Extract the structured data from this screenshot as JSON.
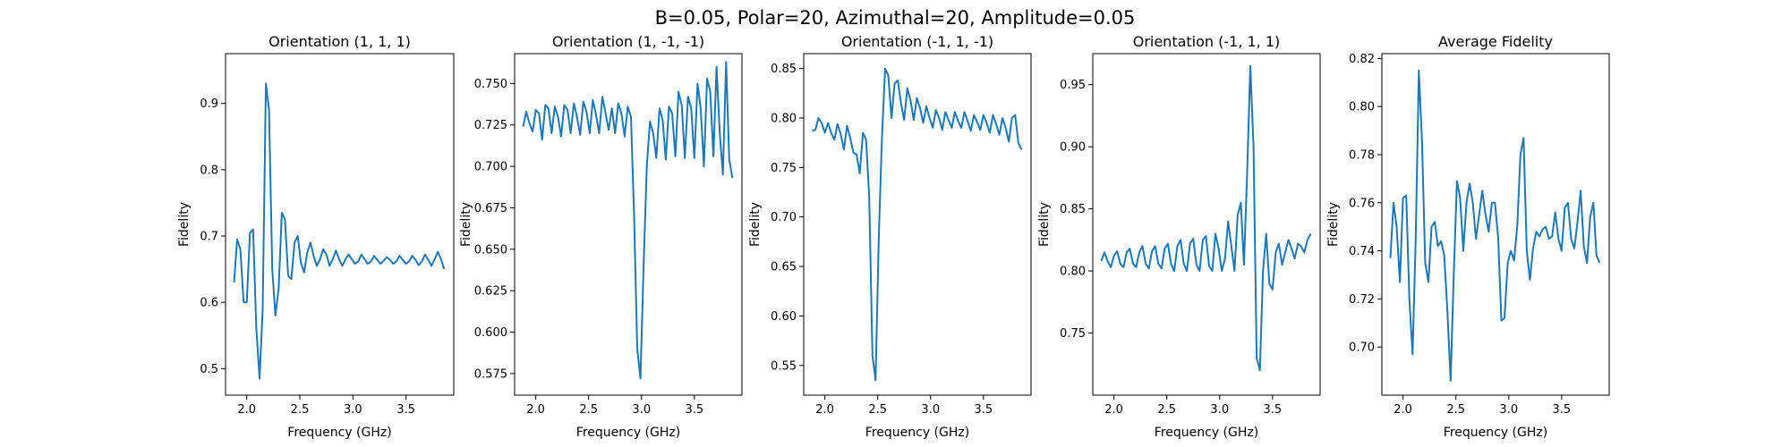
{
  "figure": {
    "suptitle": "B=0.05, Polar=20, Azimuthal=20, Amplitude=0.05"
  },
  "chart_data": [
    {
      "type": "line",
      "title": "Orientation (1, 1, 1)",
      "xlabel": "Frequency (GHz)",
      "ylabel": "Fidelity",
      "xlim": [
        1.8,
        3.95
      ],
      "ylim": [
        0.46,
        0.975
      ],
      "xticks": [
        "2.0",
        "2.5",
        "3.0",
        "3.5"
      ],
      "yticks": [
        "0.5",
        "0.6",
        "0.7",
        "0.8",
        "0.9"
      ],
      "x": [
        1.88,
        1.91,
        1.94,
        1.97,
        2.0,
        2.03,
        2.06,
        2.09,
        2.12,
        2.15,
        2.18,
        2.21,
        2.24,
        2.27,
        2.3,
        2.33,
        2.36,
        2.39,
        2.42,
        2.45,
        2.48,
        2.51,
        2.54,
        2.57,
        2.6,
        2.63,
        2.66,
        2.69,
        2.72,
        2.75,
        2.78,
        2.81,
        2.84,
        2.87,
        2.9,
        2.93,
        2.96,
        2.99,
        3.02,
        3.05,
        3.08,
        3.11,
        3.14,
        3.17,
        3.2,
        3.23,
        3.26,
        3.29,
        3.32,
        3.35,
        3.38,
        3.41,
        3.44,
        3.47,
        3.5,
        3.53,
        3.56,
        3.59,
        3.62,
        3.65,
        3.68,
        3.71,
        3.74,
        3.77,
        3.8,
        3.83,
        3.86
      ],
      "series": [
        {
          "values": [
            0.63,
            0.695,
            0.68,
            0.6,
            0.6,
            0.705,
            0.71,
            0.56,
            0.485,
            0.59,
            0.93,
            0.89,
            0.65,
            0.58,
            0.62,
            0.735,
            0.725,
            0.64,
            0.635,
            0.69,
            0.7,
            0.66,
            0.645,
            0.675,
            0.69,
            0.67,
            0.655,
            0.665,
            0.68,
            0.672,
            0.655,
            0.665,
            0.678,
            0.665,
            0.655,
            0.665,
            0.672,
            0.665,
            0.658,
            0.662,
            0.672,
            0.665,
            0.658,
            0.662,
            0.67,
            0.664,
            0.658,
            0.663,
            0.668,
            0.664,
            0.658,
            0.662,
            0.67,
            0.664,
            0.658,
            0.662,
            0.67,
            0.664,
            0.656,
            0.662,
            0.672,
            0.664,
            0.655,
            0.665,
            0.676,
            0.665,
            0.65
          ]
        }
      ]
    },
    {
      "type": "line",
      "title": "Orientation (1, -1, -1)",
      "xlabel": "Frequency (GHz)",
      "ylabel": "Fidelity",
      "xlim": [
        1.8,
        3.95
      ],
      "ylim": [
        0.562,
        0.768
      ],
      "xticks": [
        "2.0",
        "2.5",
        "3.0",
        "3.5"
      ],
      "yticks": [
        "0.575",
        "0.600",
        "0.625",
        "0.650",
        "0.675",
        "0.700",
        "0.725",
        "0.750"
      ],
      "x": [
        1.88,
        1.91,
        1.94,
        1.97,
        2.0,
        2.03,
        2.06,
        2.09,
        2.12,
        2.15,
        2.18,
        2.21,
        2.24,
        2.27,
        2.3,
        2.33,
        2.36,
        2.39,
        2.42,
        2.45,
        2.48,
        2.51,
        2.54,
        2.57,
        2.6,
        2.63,
        2.66,
        2.69,
        2.72,
        2.75,
        2.78,
        2.81,
        2.84,
        2.87,
        2.9,
        2.93,
        2.96,
        2.99,
        3.02,
        3.05,
        3.08,
        3.11,
        3.14,
        3.17,
        3.2,
        3.23,
        3.26,
        3.29,
        3.32,
        3.35,
        3.38,
        3.41,
        3.44,
        3.47,
        3.5,
        3.53,
        3.56,
        3.59,
        3.62,
        3.65,
        3.68,
        3.71,
        3.74,
        3.77,
        3.8,
        3.83,
        3.86
      ],
      "series": [
        {
          "values": [
            0.724,
            0.733,
            0.726,
            0.721,
            0.734,
            0.732,
            0.716,
            0.737,
            0.735,
            0.72,
            0.736,
            0.73,
            0.718,
            0.737,
            0.734,
            0.72,
            0.738,
            0.73,
            0.719,
            0.739,
            0.733,
            0.72,
            0.74,
            0.731,
            0.72,
            0.742,
            0.732,
            0.722,
            0.735,
            0.72,
            0.738,
            0.732,
            0.718,
            0.736,
            0.73,
            0.67,
            0.59,
            0.572,
            0.64,
            0.7,
            0.727,
            0.72,
            0.705,
            0.735,
            0.728,
            0.704,
            0.736,
            0.732,
            0.706,
            0.745,
            0.737,
            0.705,
            0.742,
            0.735,
            0.705,
            0.75,
            0.735,
            0.7,
            0.753,
            0.745,
            0.706,
            0.76,
            0.72,
            0.695,
            0.763,
            0.704,
            0.693
          ]
        }
      ]
    },
    {
      "type": "line",
      "title": "Orientation (-1, 1, -1)",
      "xlabel": "Frequency (GHz)",
      "ylabel": "Fidelity",
      "xlim": [
        1.8,
        3.95
      ],
      "ylim": [
        0.52,
        0.865
      ],
      "xticks": [
        "2.0",
        "2.5",
        "3.0",
        "3.5"
      ],
      "yticks": [
        "0.55",
        "0.60",
        "0.65",
        "0.70",
        "0.75",
        "0.80",
        "0.85"
      ],
      "x": [
        1.88,
        1.91,
        1.94,
        1.97,
        2.0,
        2.03,
        2.06,
        2.09,
        2.12,
        2.15,
        2.18,
        2.21,
        2.24,
        2.27,
        2.3,
        2.33,
        2.36,
        2.39,
        2.42,
        2.45,
        2.48,
        2.51,
        2.54,
        2.57,
        2.6,
        2.63,
        2.66,
        2.69,
        2.72,
        2.75,
        2.78,
        2.81,
        2.84,
        2.87,
        2.9,
        2.93,
        2.96,
        2.99,
        3.02,
        3.05,
        3.08,
        3.11,
        3.14,
        3.17,
        3.2,
        3.23,
        3.26,
        3.29,
        3.32,
        3.35,
        3.38,
        3.41,
        3.44,
        3.47,
        3.5,
        3.53,
        3.56,
        3.59,
        3.62,
        3.65,
        3.68,
        3.71,
        3.74,
        3.77,
        3.8,
        3.83,
        3.86
      ],
      "series": [
        {
          "values": [
            0.787,
            0.788,
            0.8,
            0.795,
            0.785,
            0.795,
            0.785,
            0.778,
            0.794,
            0.784,
            0.768,
            0.792,
            0.78,
            0.765,
            0.763,
            0.744,
            0.785,
            0.778,
            0.72,
            0.56,
            0.535,
            0.68,
            0.78,
            0.85,
            0.843,
            0.8,
            0.835,
            0.838,
            0.815,
            0.798,
            0.83,
            0.818,
            0.798,
            0.82,
            0.81,
            0.795,
            0.812,
            0.8,
            0.79,
            0.808,
            0.8,
            0.788,
            0.806,
            0.798,
            0.79,
            0.806,
            0.797,
            0.79,
            0.806,
            0.797,
            0.787,
            0.803,
            0.796,
            0.788,
            0.803,
            0.795,
            0.785,
            0.803,
            0.794,
            0.783,
            0.8,
            0.79,
            0.776,
            0.8,
            0.803,
            0.775,
            0.768
          ]
        }
      ]
    },
    {
      "type": "line",
      "title": "Orientation (-1, 1, 1)",
      "xlabel": "Frequency (GHz)",
      "ylabel": "Fidelity",
      "xlim": [
        1.8,
        3.95
      ],
      "ylim": [
        0.7,
        0.975
      ],
      "xticks": [
        "2.0",
        "2.5",
        "3.0",
        "3.5"
      ],
      "yticks": [
        "0.75",
        "0.80",
        "0.85",
        "0.90",
        "0.95"
      ],
      "x": [
        1.88,
        1.91,
        1.94,
        1.97,
        2.0,
        2.03,
        2.06,
        2.09,
        2.12,
        2.15,
        2.18,
        2.21,
        2.24,
        2.27,
        2.3,
        2.33,
        2.36,
        2.39,
        2.42,
        2.45,
        2.48,
        2.51,
        2.54,
        2.57,
        2.6,
        2.63,
        2.66,
        2.69,
        2.72,
        2.75,
        2.78,
        2.81,
        2.84,
        2.87,
        2.9,
        2.93,
        2.96,
        2.99,
        3.02,
        3.05,
        3.08,
        3.11,
        3.14,
        3.17,
        3.2,
        3.23,
        3.26,
        3.29,
        3.32,
        3.35,
        3.38,
        3.41,
        3.44,
        3.47,
        3.5,
        3.53,
        3.56,
        3.59,
        3.62,
        3.65,
        3.68,
        3.71,
        3.74,
        3.77,
        3.8,
        3.83,
        3.86
      ],
      "series": [
        {
          "values": [
            0.808,
            0.815,
            0.808,
            0.803,
            0.812,
            0.816,
            0.806,
            0.803,
            0.815,
            0.818,
            0.806,
            0.803,
            0.815,
            0.82,
            0.806,
            0.802,
            0.816,
            0.82,
            0.806,
            0.802,
            0.818,
            0.822,
            0.806,
            0.8,
            0.82,
            0.825,
            0.806,
            0.8,
            0.822,
            0.826,
            0.805,
            0.8,
            0.825,
            0.828,
            0.804,
            0.8,
            0.83,
            0.818,
            0.8,
            0.81,
            0.84,
            0.82,
            0.8,
            0.845,
            0.855,
            0.805,
            0.88,
            0.965,
            0.9,
            0.73,
            0.72,
            0.8,
            0.83,
            0.79,
            0.785,
            0.815,
            0.822,
            0.805,
            0.815,
            0.825,
            0.818,
            0.81,
            0.822,
            0.82,
            0.815,
            0.825,
            0.83
          ]
        }
      ]
    },
    {
      "type": "line",
      "title": "Average Fidelity",
      "xlabel": "Frequency (GHz)",
      "ylabel": "Fidelity",
      "xlim": [
        1.8,
        3.95
      ],
      "ylim": [
        0.68,
        0.822
      ],
      "xticks": [
        "2.0",
        "2.5",
        "3.0",
        "3.5"
      ],
      "yticks": [
        "0.70",
        "0.72",
        "0.74",
        "0.76",
        "0.78",
        "0.80",
        "0.82"
      ],
      "x": [
        1.88,
        1.91,
        1.94,
        1.97,
        2.0,
        2.03,
        2.06,
        2.09,
        2.12,
        2.15,
        2.18,
        2.21,
        2.24,
        2.27,
        2.3,
        2.33,
        2.36,
        2.39,
        2.42,
        2.45,
        2.48,
        2.51,
        2.54,
        2.57,
        2.6,
        2.63,
        2.66,
        2.69,
        2.72,
        2.75,
        2.78,
        2.81,
        2.84,
        2.87,
        2.9,
        2.93,
        2.96,
        2.99,
        3.02,
        3.05,
        3.08,
        3.11,
        3.14,
        3.17,
        3.2,
        3.23,
        3.26,
        3.29,
        3.32,
        3.35,
        3.38,
        3.41,
        3.44,
        3.47,
        3.5,
        3.53,
        3.56,
        3.59,
        3.62,
        3.65,
        3.68,
        3.71,
        3.74,
        3.77,
        3.8,
        3.83,
        3.86
      ],
      "series": [
        {
          "values": [
            0.737,
            0.76,
            0.75,
            0.727,
            0.762,
            0.763,
            0.72,
            0.697,
            0.745,
            0.815,
            0.785,
            0.735,
            0.727,
            0.75,
            0.752,
            0.742,
            0.744,
            0.738,
            0.715,
            0.686,
            0.73,
            0.769,
            0.762,
            0.74,
            0.76,
            0.768,
            0.76,
            0.745,
            0.755,
            0.765,
            0.755,
            0.748,
            0.76,
            0.76,
            0.745,
            0.711,
            0.712,
            0.735,
            0.74,
            0.736,
            0.75,
            0.78,
            0.787,
            0.74,
            0.728,
            0.741,
            0.748,
            0.746,
            0.749,
            0.75,
            0.745,
            0.746,
            0.756,
            0.745,
            0.74,
            0.758,
            0.76,
            0.745,
            0.741,
            0.752,
            0.765,
            0.742,
            0.735,
            0.754,
            0.76,
            0.738,
            0.735
          ]
        }
      ]
    }
  ]
}
